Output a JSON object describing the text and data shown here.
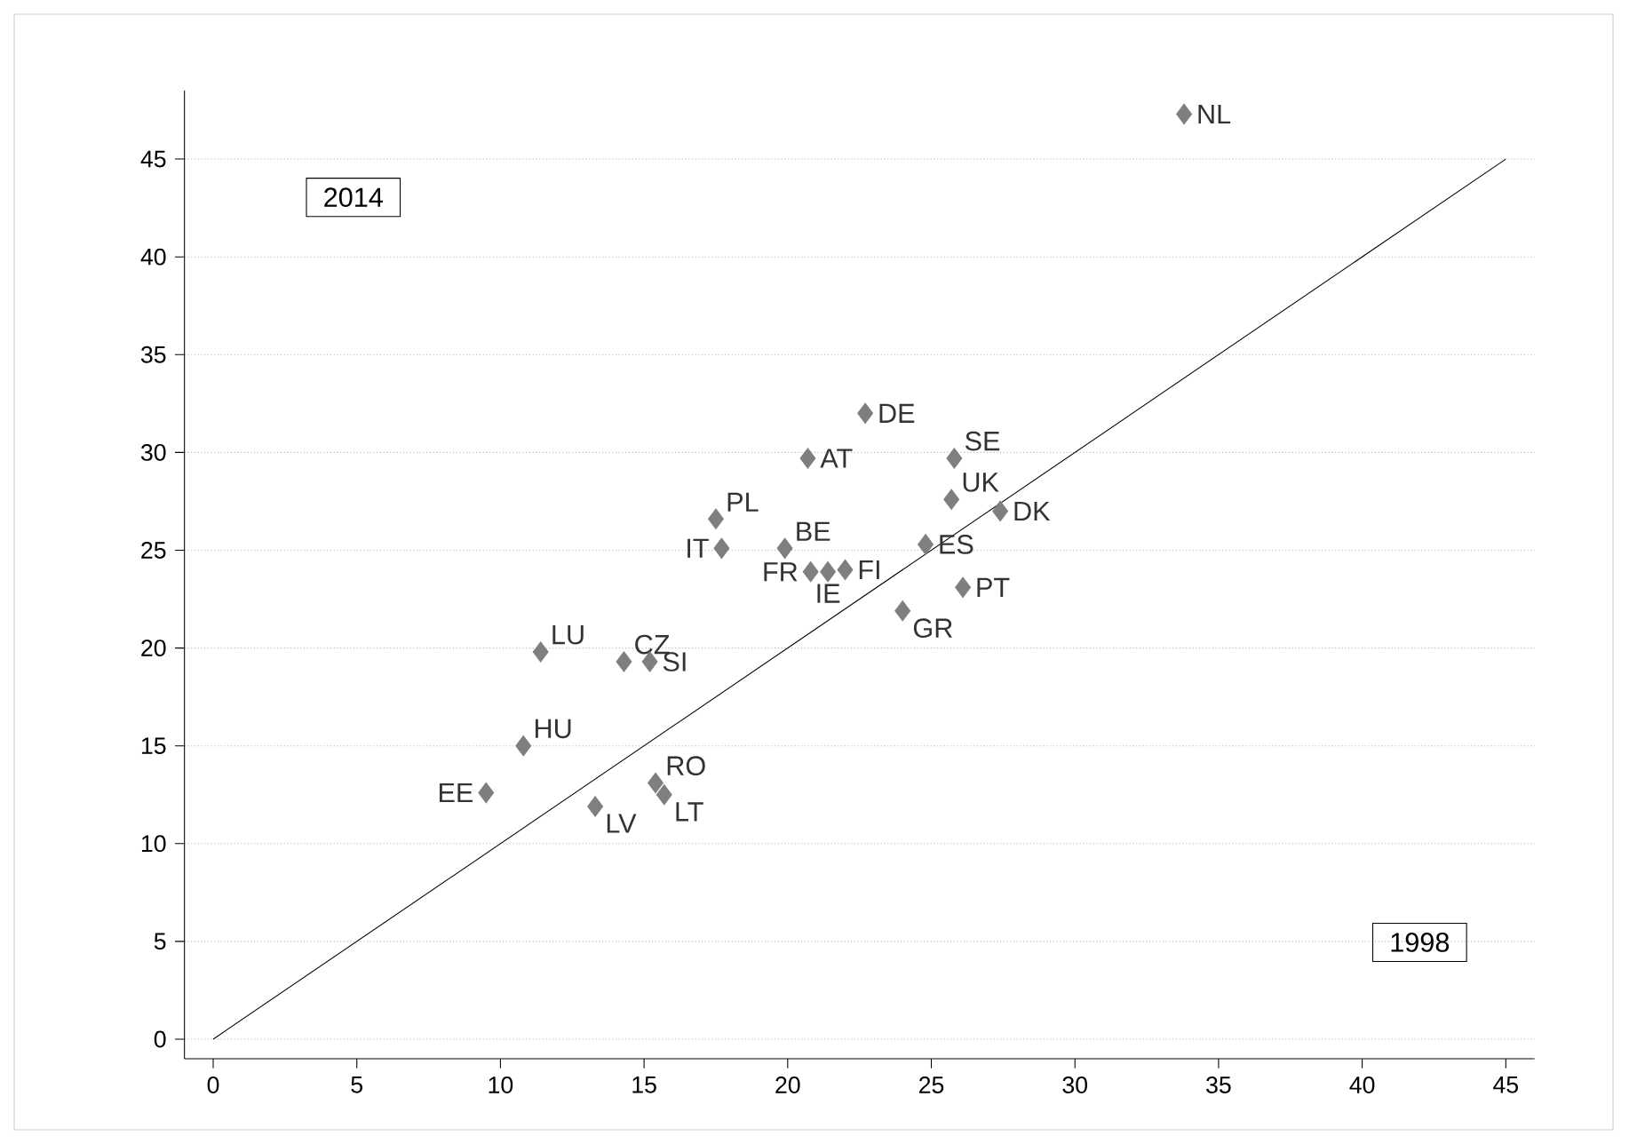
{
  "chart_data": {
    "type": "scatter",
    "xlim": [
      -1,
      46
    ],
    "ylim": [
      -1,
      48.5
    ],
    "xticks": [
      0,
      5,
      10,
      15,
      20,
      25,
      30,
      35,
      40,
      45
    ],
    "yticks": [
      0,
      5,
      10,
      15,
      20,
      25,
      30,
      35,
      40,
      45
    ],
    "grid": "y",
    "series": [
      {
        "marker": "diamond",
        "color": "#7f7f7f",
        "x": [
          33.8,
          22.7,
          20.7,
          25.8,
          25.7,
          27.4,
          17.5,
          17.7,
          19.9,
          24.8,
          22.0,
          21.4,
          20.8,
          26.1,
          24.0,
          11.4,
          14.3,
          15.2,
          10.8,
          9.5,
          13.3,
          15.4,
          15.7
        ],
        "values": [
          47.3,
          32.0,
          29.7,
          29.7,
          27.6,
          27.0,
          26.6,
          25.1,
          25.1,
          25.3,
          24.0,
          23.9,
          23.9,
          23.1,
          21.9,
          19.8,
          19.3,
          19.3,
          15.0,
          12.6,
          11.9,
          13.1,
          12.5
        ]
      },
      {
        "type": "line",
        "color": "#000000",
        "x": [
          0,
          45
        ],
        "values": [
          0,
          45
        ]
      }
    ],
    "annotations": [
      "2014",
      "1998",
      {
        "text": "NL",
        "x": 33.8,
        "y": 47.3
      },
      {
        "text": "DE",
        "x": 22.7,
        "y": 32.0
      },
      {
        "text": "AT",
        "x": 20.7,
        "y": 29.7
      },
      {
        "text": "SE",
        "x": 25.8,
        "y": 29.7
      },
      {
        "text": "UK",
        "x": 25.7,
        "y": 27.6
      },
      {
        "text": "DK",
        "x": 27.4,
        "y": 27.0
      },
      {
        "text": "PL",
        "x": 17.5,
        "y": 26.6
      },
      {
        "text": "IT",
        "x": 17.7,
        "y": 25.1
      },
      {
        "text": "BE",
        "x": 19.9,
        "y": 25.1
      },
      {
        "text": "ES",
        "x": 24.8,
        "y": 25.3
      },
      {
        "text": "FI",
        "x": 22.0,
        "y": 24.0
      },
      {
        "text": "IE",
        "x": 21.4,
        "y": 23.9
      },
      {
        "text": "FR",
        "x": 20.8,
        "y": 23.9
      },
      {
        "text": "PT",
        "x": 26.1,
        "y": 23.1
      },
      {
        "text": "GR",
        "x": 24.0,
        "y": 21.9
      },
      {
        "text": "LU",
        "x": 11.4,
        "y": 19.8
      },
      {
        "text": "CZ",
        "x": 14.3,
        "y": 19.3
      },
      {
        "text": "SI",
        "x": 15.2,
        "y": 19.3
      },
      {
        "text": "HU",
        "x": 10.8,
        "y": 15.0
      },
      {
        "text": "EE",
        "x": 9.5,
        "y": 12.6
      },
      {
        "text": "LV",
        "x": 13.3,
        "y": 11.9
      },
      {
        "text": "RO",
        "x": 15.4,
        "y": 13.1
      },
      {
        "text": "LT",
        "x": 15.7,
        "y": 12.5
      }
    ]
  }
}
